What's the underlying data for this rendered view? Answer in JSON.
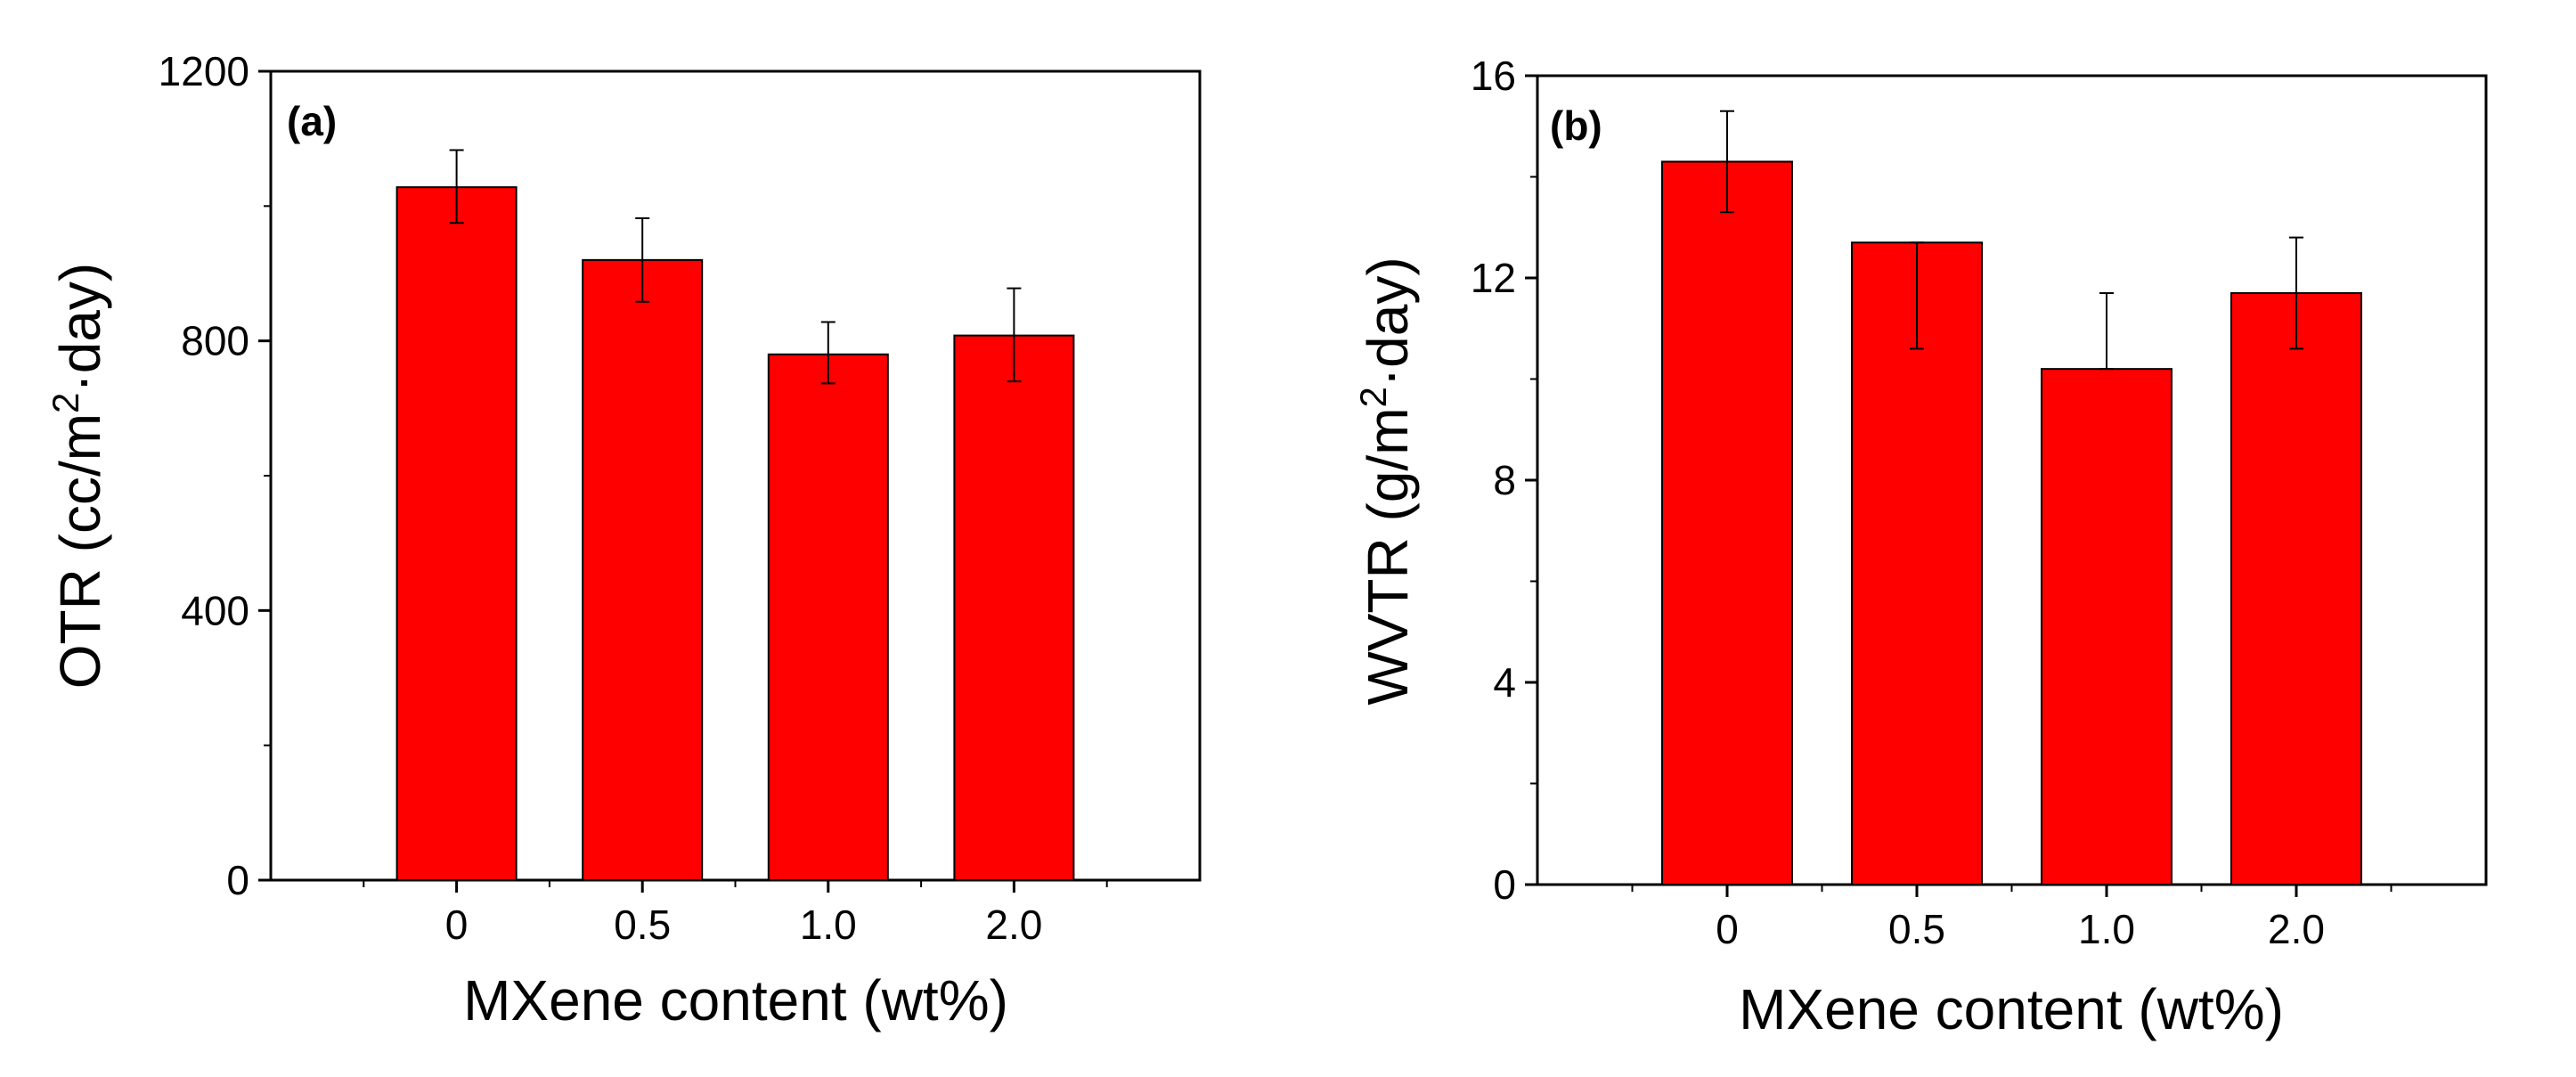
{
  "chart_data": [
    {
      "type": "bar",
      "panel_label": "(a)",
      "categories": [
        "0",
        "0.5",
        "1.0",
        "2.0"
      ],
      "values": [
        1028,
        920,
        780,
        808
      ],
      "error": [
        [
          1028,
          975,
          1083
        ],
        [
          920,
          858,
          982
        ],
        [
          780,
          737,
          828
        ],
        [
          808,
          740,
          878
        ]
      ],
      "ylabel_main": "OTR (cc/m",
      "ylabel_sup": "2",
      "ylabel_tail": "·day)",
      "xlabel": "MXene content (wt%)",
      "ylim": [
        0,
        1200
      ],
      "yticks": [
        0,
        400,
        800,
        1200
      ],
      "bar_color": "#ff0000"
    },
    {
      "type": "bar",
      "panel_label": "(b)",
      "categories": [
        "0",
        "0.5",
        "1.0",
        "2.0"
      ],
      "values": [
        14.3,
        12.7,
        10.2,
        11.7
      ],
      "error": [
        [
          14.3,
          13.3,
          15.3
        ],
        [
          12.7,
          10.6,
          12.7
        ],
        [
          10.2,
          10.2,
          11.7
        ],
        [
          11.7,
          10.6,
          12.8
        ]
      ],
      "ylabel_main": "WVTR (g/m",
      "ylabel_sup": "2",
      "ylabel_tail": "·day)",
      "xlabel": "MXene content (wt%)",
      "ylim": [
        0,
        16
      ],
      "yticks": [
        0,
        4,
        8,
        12,
        16
      ],
      "bar_color": "#ff0000"
    }
  ]
}
